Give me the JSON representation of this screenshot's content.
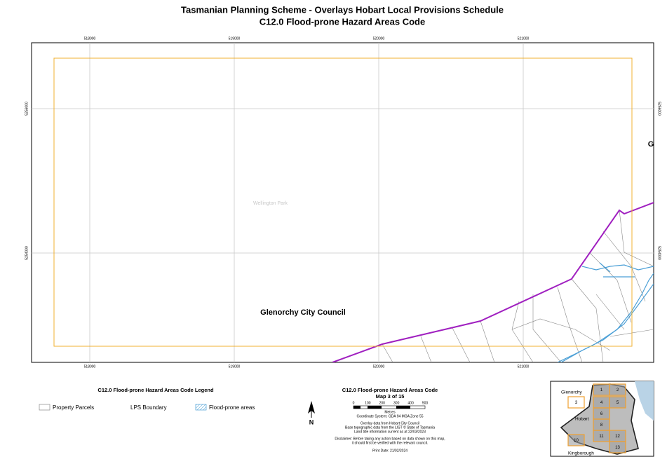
{
  "header": {
    "title": "Tasmanian Planning Scheme - Overlays Hobart Local Provisions Schedule",
    "subtitle": "C12.0 Flood-prone Hazard Areas Code"
  },
  "map": {
    "eastings": [
      "518000",
      "519000",
      "520000",
      "521000"
    ],
    "northings": [
      "5256000",
      "5254000"
    ],
    "labels": [
      "Wellington Park",
      "Glenorchy City Council",
      "G"
    ]
  },
  "legend": {
    "title": "C12.0 Flood-prone Hazard Areas Code Legend",
    "items": [
      "Property Parcels",
      "LPS Boundary",
      "Flood-prone areas"
    ]
  },
  "info": {
    "title": "C12.0 Flood-prone Hazard Areas Code",
    "map_number": "Map 3 of 15",
    "scale_labels": [
      "0",
      "100",
      "200",
      "300",
      "400",
      "500"
    ],
    "scale_unit": "Metres",
    "coordinate_system": "Coordinate System: GDA 94 MGA Zone 55",
    "notes": [
      "Overlay data from Hobart City Council",
      "Base topographic data from the LIST © State of Tasmania",
      "Land title information current as at 22/03/2023"
    ],
    "disclaimer": [
      "Disclaimer: Before taking any action based on data shown on this map,",
      "it should first be verified with the relevant council."
    ],
    "print_date": "Print Date: 21/02/2024",
    "north": "N"
  },
  "inset": {
    "places": [
      "Glenorchy",
      "Hobart",
      "Kingborough"
    ],
    "sheets": [
      "1",
      "2",
      "3",
      "4",
      "5",
      "6",
      "8",
      "11",
      "12",
      "10",
      "13"
    ]
  }
}
